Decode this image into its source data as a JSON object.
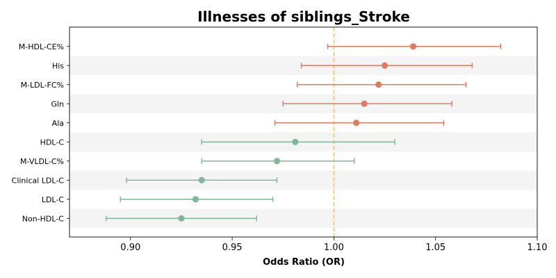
{
  "chart_data": {
    "type": "forest",
    "title": "Illnesses of siblings_Stroke",
    "xlabel": "Odds Ratio (OR)",
    "xlim": [
      0.87,
      1.1
    ],
    "xticks": [
      0.9,
      0.95,
      1.0,
      1.05,
      1.1
    ],
    "xtick_labels": [
      "0.90",
      "0.95",
      "1.00",
      "1.05",
      "1.10"
    ],
    "reference_line": 1.0,
    "grid": false,
    "row_striping": true,
    "colors": {
      "positive": "#e07b5f",
      "negative": "#80b79b",
      "reference": "#f5c27a",
      "stripe": "#f4f4f4"
    },
    "points": [
      {
        "label": "M-HDL-CE%",
        "or": 1.039,
        "lo": 0.997,
        "hi": 1.082
      },
      {
        "label": "His",
        "or": 1.025,
        "lo": 0.984,
        "hi": 1.068
      },
      {
        "label": "M-LDL-FC%",
        "or": 1.022,
        "lo": 0.982,
        "hi": 1.065
      },
      {
        "label": "Gln",
        "or": 1.015,
        "lo": 0.975,
        "hi": 1.058
      },
      {
        "label": "Ala",
        "or": 1.011,
        "lo": 0.971,
        "hi": 1.054
      },
      {
        "label": "HDL-C",
        "or": 0.981,
        "lo": 0.935,
        "hi": 1.03
      },
      {
        "label": "M-VLDL-C%",
        "or": 0.972,
        "lo": 0.935,
        "hi": 1.01
      },
      {
        "label": "Clinical LDL-C",
        "or": 0.935,
        "lo": 0.898,
        "hi": 0.972
      },
      {
        "label": "LDL-C",
        "or": 0.932,
        "lo": 0.895,
        "hi": 0.97
      },
      {
        "label": "Non-HDL-C",
        "or": 0.925,
        "lo": 0.888,
        "hi": 0.962
      }
    ]
  }
}
